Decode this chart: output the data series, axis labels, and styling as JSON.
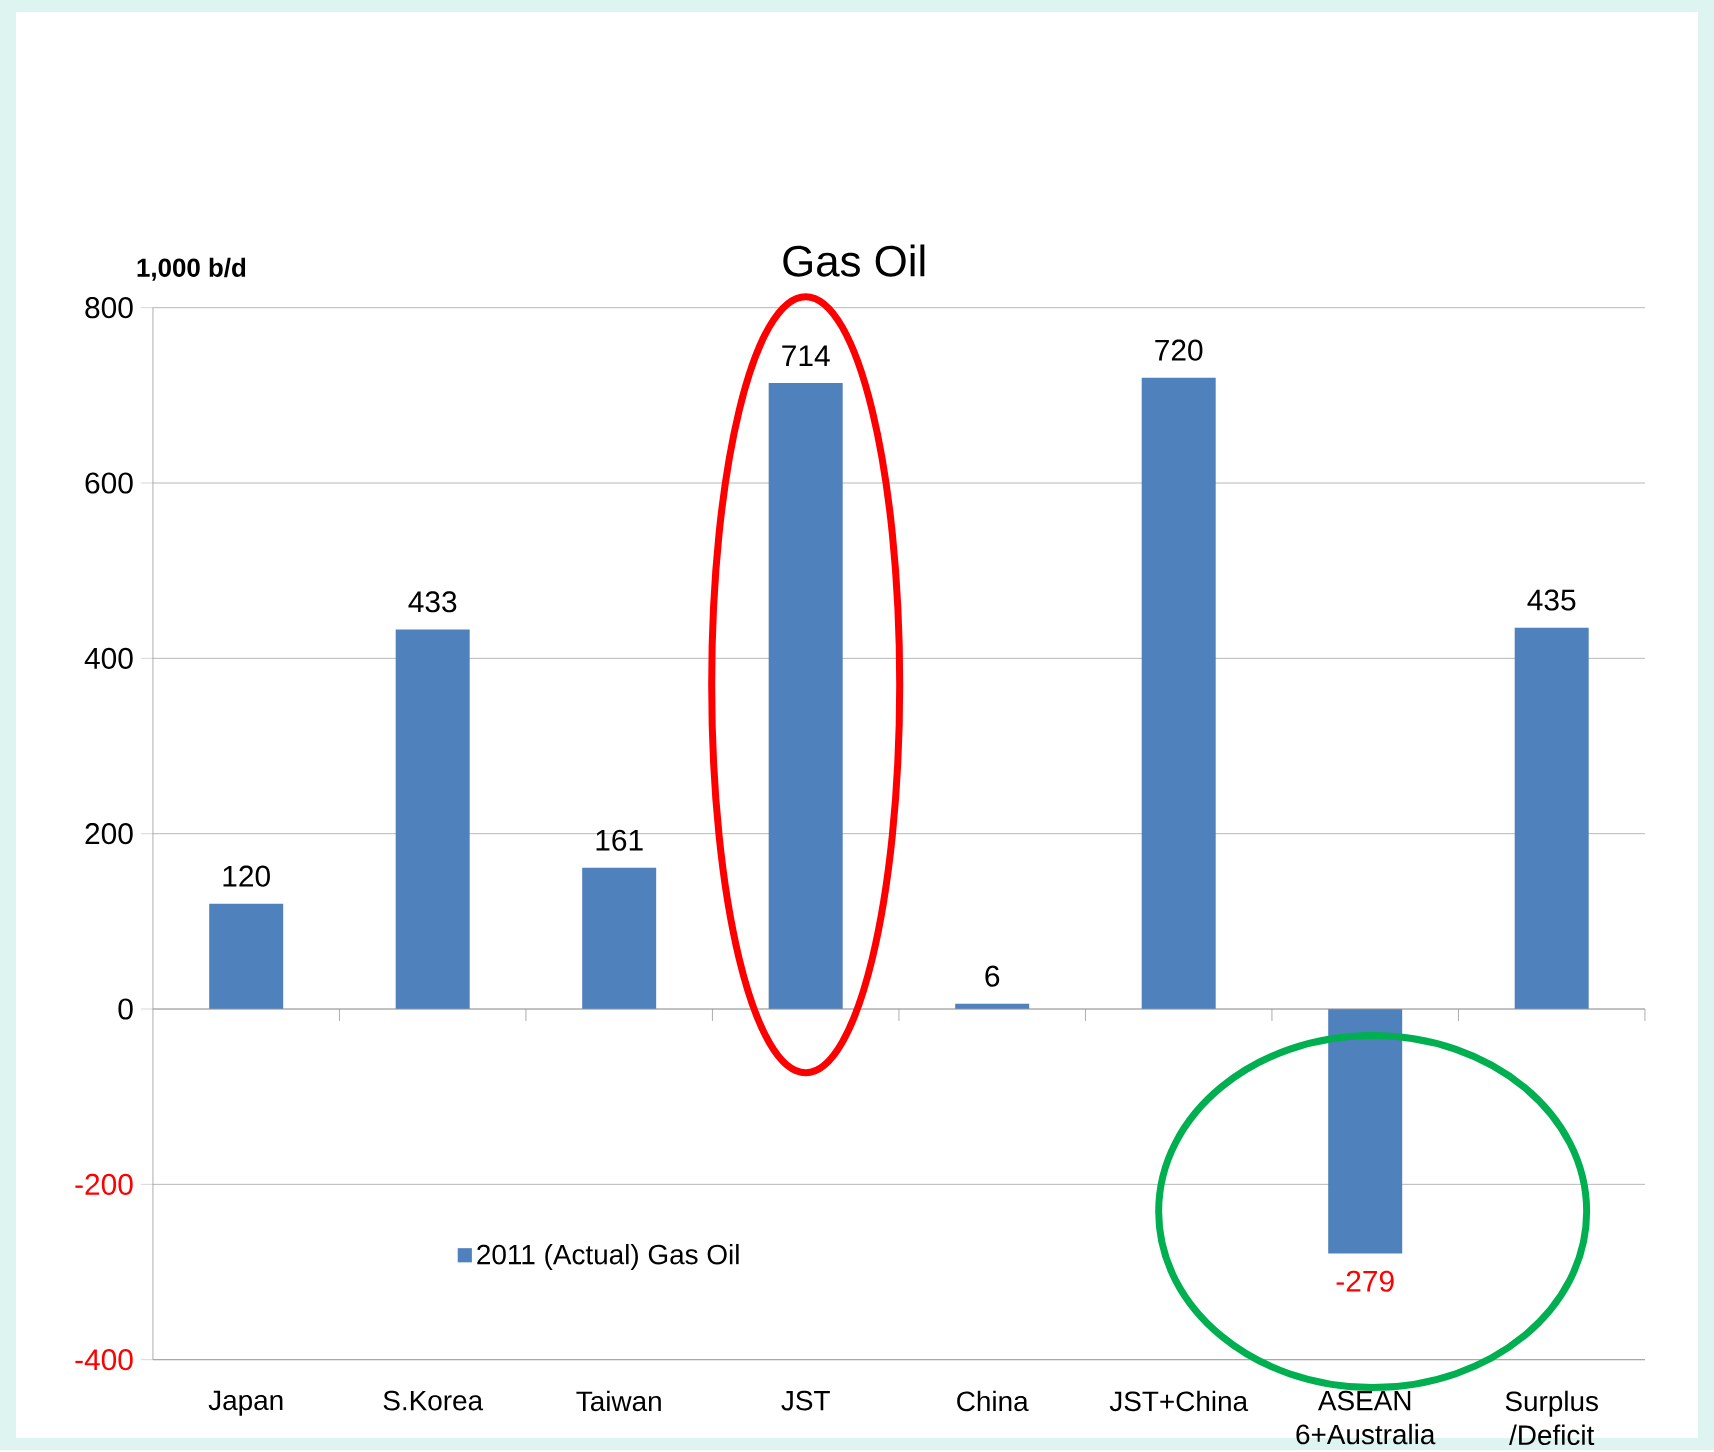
{
  "chart_data": {
    "type": "bar",
    "title": "Gas Oil",
    "ylabel": "1,000 b/d",
    "categories": [
      "Japan",
      "S.Korea",
      "Taiwan",
      "JST",
      "China",
      "JST+China",
      "ASEAN 6+Australia",
      "Surplus /Deficit"
    ],
    "series": [
      {
        "name": "2011 (Actual) Gas Oil",
        "color": "#4f81bd",
        "values": [
          120,
          433,
          161,
          714,
          6,
          720,
          -279,
          435
        ]
      }
    ],
    "ylim": [
      -400,
      800
    ],
    "yticks": [
      -400,
      -200,
      0,
      200,
      400,
      600,
      800
    ],
    "grid": "y",
    "legend": "bottom left",
    "data_labels": true
  }
}
